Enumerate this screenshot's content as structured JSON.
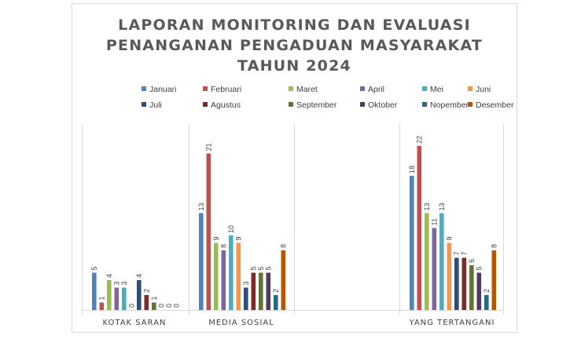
{
  "chart_data": {
    "type": "bar",
    "title_lines": [
      "LAPORAN MONITORING DAN EVALUASI",
      "PENANGANAN PENGADUAN  MASYARAKAT",
      "TAHUN 2024"
    ],
    "categories": [
      "KOTAK SARAN",
      "MEDIA SOSIAL",
      "",
      "YANG TERTANGANI"
    ],
    "ylim": [
      0,
      23
    ],
    "grid": false,
    "legend_position": "top",
    "series": [
      {
        "name": "Januari",
        "color": "#4f81bd",
        "values": [
          5,
          13,
          null,
          18
        ]
      },
      {
        "name": "Februari",
        "color": "#c0504d",
        "values": [
          1,
          21,
          null,
          22
        ]
      },
      {
        "name": "Maret",
        "color": "#9bbb59",
        "values": [
          4,
          9,
          null,
          13
        ]
      },
      {
        "name": "April",
        "color": "#8064a2",
        "values": [
          3,
          8,
          null,
          11
        ]
      },
      {
        "name": "Mei",
        "color": "#4bacc6",
        "values": [
          3,
          10,
          null,
          13
        ]
      },
      {
        "name": "Juni",
        "color": "#f79646",
        "values": [
          0,
          9,
          null,
          9
        ]
      },
      {
        "name": "Juli",
        "color": "#2c4d75",
        "values": [
          4,
          3,
          null,
          7
        ]
      },
      {
        "name": "Agustus",
        "color": "#772c2a",
        "values": [
          2,
          5,
          null,
          7
        ]
      },
      {
        "name": "September",
        "color": "#5f7530",
        "values": [
          1,
          5,
          null,
          6
        ]
      },
      {
        "name": "Oktober",
        "color": "#4d3b62",
        "values": [
          0,
          5,
          null,
          5
        ]
      },
      {
        "name": "Nopember",
        "color": "#276a7c",
        "values": [
          0,
          2,
          null,
          2
        ]
      },
      {
        "name": "Desember",
        "color": "#b65708",
        "values": [
          0,
          8,
          null,
          8
        ]
      }
    ]
  }
}
